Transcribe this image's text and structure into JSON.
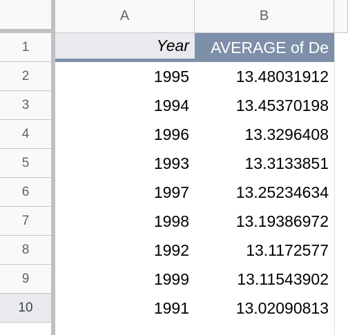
{
  "columns": [
    "A",
    "B"
  ],
  "rows": [
    {
      "num": "1",
      "a": "Year",
      "b": "AVERAGE of De"
    },
    {
      "num": "2",
      "a": "1995",
      "b": "13.48031912"
    },
    {
      "num": "3",
      "a": "1994",
      "b": "13.45370198"
    },
    {
      "num": "4",
      "a": "1996",
      "b": "13.3296408"
    },
    {
      "num": "5",
      "a": "1993",
      "b": "13.3133851"
    },
    {
      "num": "6",
      "a": "1997",
      "b": "13.25234634"
    },
    {
      "num": "7",
      "a": "1998",
      "b": "13.19386972"
    },
    {
      "num": "8",
      "a": "1992",
      "b": "13.1172577"
    },
    {
      "num": "9",
      "a": "1999",
      "b": "13.11543902"
    },
    {
      "num": "10",
      "a": "1991",
      "b": "13.02090813"
    }
  ],
  "active_row": "10",
  "colors": {
    "header_accent": "#7e8fa9",
    "header_bg": "#e8eaed",
    "gridline": "#c7c7c7"
  }
}
